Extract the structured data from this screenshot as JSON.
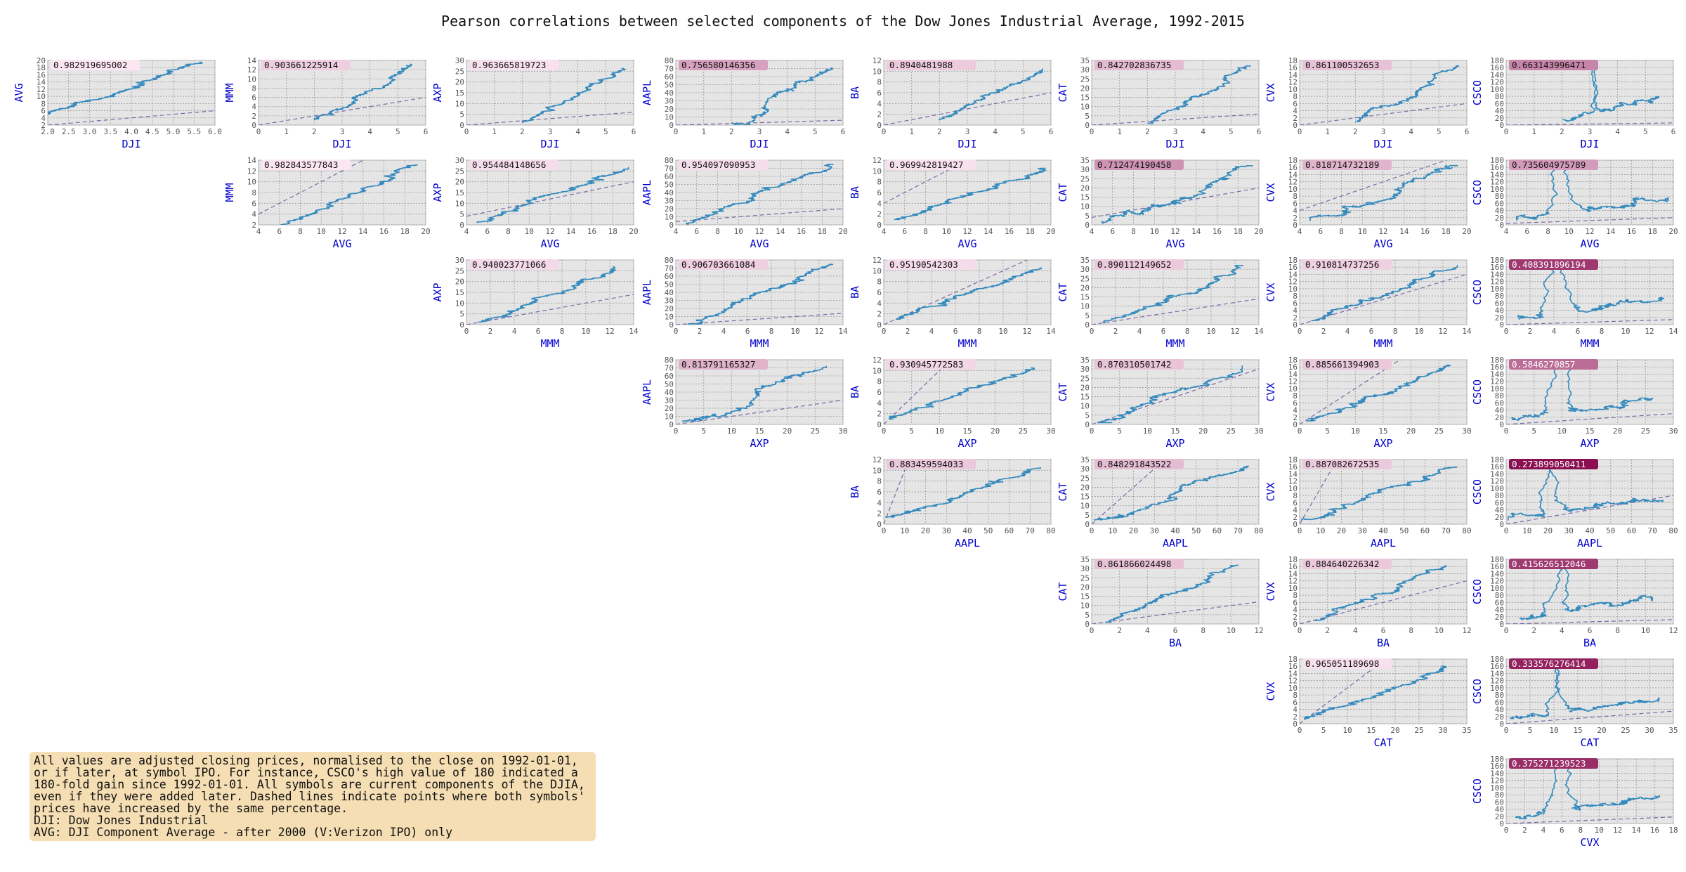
{
  "chart_data": {
    "type": "scatter",
    "title": "Pearson correlations between selected components of the Dow Jones Industrial Average, 1992-2015",
    "symbols": [
      "DJI",
      "AVG",
      "MMM",
      "AXP",
      "AAPL",
      "BA",
      "CAT",
      "CVX",
      "CSCO"
    ],
    "axes": {
      "DJI": {
        "lim": [
          2,
          6
        ],
        "ticks": [
          "2.0",
          "2.5",
          "3.0",
          "3.5",
          "4.0",
          "4.5",
          "5.0",
          "5.5",
          "6.0"
        ],
        "tick_values": [
          2,
          2.5,
          3,
          3.5,
          4,
          4.5,
          5,
          5.5,
          6
        ],
        "xlim_full": [
          0,
          6
        ],
        "xticks_full": [
          0,
          1,
          2,
          3,
          4,
          5,
          6
        ],
        "x_hi": 5.7
      },
      "AVG": {
        "lim": [
          4,
          20
        ],
        "ticks": [
          4,
          6,
          8,
          10,
          12,
          14,
          16,
          18,
          20
        ],
        "x_hi": 19.5
      },
      "MMM": {
        "lim": [
          0,
          14
        ],
        "ticks": [
          0,
          2,
          4,
          6,
          8,
          10,
          12,
          14
        ],
        "x_hi": 13.2
      },
      "AXP": {
        "lim": [
          0,
          30
        ],
        "ticks": [
          0,
          5,
          10,
          15,
          20,
          25,
          30
        ],
        "x_hi": 27
      },
      "AAPL": {
        "lim": [
          0,
          80
        ],
        "ticks": [
          0,
          10,
          20,
          30,
          40,
          50,
          60,
          70,
          80
        ],
        "x_hi": 75
      },
      "BA": {
        "lim": [
          0,
          12
        ],
        "ticks": [
          0,
          2,
          4,
          6,
          8,
          10,
          12
        ],
        "x_hi": 10.5
      },
      "CAT": {
        "lim": [
          0,
          35
        ],
        "ticks": [
          0,
          5,
          10,
          15,
          20,
          25,
          30,
          35
        ],
        "x_hi": 32
      },
      "CVX": {
        "lim": [
          0,
          18
        ],
        "ticks": [
          0,
          2,
          4,
          6,
          8,
          10,
          12,
          14,
          16,
          18
        ],
        "x_hi": 16.5
      },
      "CSCO": {
        "lim": [
          0,
          180
        ],
        "ticks": [
          0,
          20,
          40,
          60,
          80,
          100,
          120,
          140,
          160,
          180
        ],
        "x_hi": 170
      }
    },
    "special_ylim": {
      "AVG_vs_DJI": [
        2,
        20
      ],
      "AVG_vs_DJI_ticks": [
        2,
        4,
        6,
        8,
        10,
        12,
        14,
        16,
        18,
        20
      ],
      "MMM_vs_AVG": [
        2,
        14
      ],
      "MMM_vs_AVG_ticks": [
        2,
        4,
        6,
        8,
        10,
        12,
        14
      ]
    },
    "pairs": [
      {
        "x": "DJI",
        "y": "AVG",
        "r": "0.982919695002"
      },
      {
        "x": "DJI",
        "y": "MMM",
        "r": "0.903661225914"
      },
      {
        "x": "DJI",
        "y": "AXP",
        "r": "0.963665819723"
      },
      {
        "x": "DJI",
        "y": "AAPL",
        "r": "0.756580146356"
      },
      {
        "x": "DJI",
        "y": "BA",
        "r": "0.8940481988"
      },
      {
        "x": "DJI",
        "y": "CAT",
        "r": "0.842702836735"
      },
      {
        "x": "DJI",
        "y": "CVX",
        "r": "0.861100532653"
      },
      {
        "x": "DJI",
        "y": "CSCO",
        "r": "0.663143996471"
      },
      {
        "x": "AVG",
        "y": "MMM",
        "r": "0.982843577843"
      },
      {
        "x": "AVG",
        "y": "AXP",
        "r": "0.954484148656"
      },
      {
        "x": "AVG",
        "y": "AAPL",
        "r": "0.954097090953"
      },
      {
        "x": "AVG",
        "y": "BA",
        "r": "0.969942819427"
      },
      {
        "x": "AVG",
        "y": "CAT",
        "r": "0.712474190458"
      },
      {
        "x": "AVG",
        "y": "CVX",
        "r": "0.818714732189"
      },
      {
        "x": "AVG",
        "y": "CSCO",
        "r": "0.735604975789"
      },
      {
        "x": "MMM",
        "y": "AXP",
        "r": "0.940023771066"
      },
      {
        "x": "MMM",
        "y": "AAPL",
        "r": "0.906703661084"
      },
      {
        "x": "MMM",
        "y": "BA",
        "r": "0.95190542303"
      },
      {
        "x": "MMM",
        "y": "CAT",
        "r": "0.890112149652"
      },
      {
        "x": "MMM",
        "y": "CVX",
        "r": "0.910814737256"
      },
      {
        "x": "MMM",
        "y": "CSCO",
        "r": "0.408391896194"
      },
      {
        "x": "AXP",
        "y": "AAPL",
        "r": "0.813791165327"
      },
      {
        "x": "AXP",
        "y": "BA",
        "r": "0.930945772583"
      },
      {
        "x": "AXP",
        "y": "CAT",
        "r": "0.870310501742"
      },
      {
        "x": "AXP",
        "y": "CVX",
        "r": "0.885661394903"
      },
      {
        "x": "AXP",
        "y": "CSCO",
        "r": "0.5846270857"
      },
      {
        "x": "AAPL",
        "y": "BA",
        "r": "0.883459594033"
      },
      {
        "x": "AAPL",
        "y": "CAT",
        "r": "0.848291843522"
      },
      {
        "x": "AAPL",
        "y": "CVX",
        "r": "0.887082672535"
      },
      {
        "x": "AAPL",
        "y": "CSCO",
        "r": "0.273899050411"
      },
      {
        "x": "BA",
        "y": "CAT",
        "r": "0.861866024498"
      },
      {
        "x": "BA",
        "y": "CVX",
        "r": "0.884640226342"
      },
      {
        "x": "BA",
        "y": "CSCO",
        "r": "0.415626512046"
      },
      {
        "x": "CAT",
        "y": "CVX",
        "r": "0.965051189698"
      },
      {
        "x": "CAT",
        "y": "CSCO",
        "r": "0.333576276414"
      },
      {
        "x": "CVX",
        "y": "CSCO",
        "r": "0.375271239523"
      }
    ],
    "grid": true,
    "colors": {
      "line": "#348ABD",
      "dash": "#7A68A6",
      "axes_bg": "#E5E5E5",
      "label": "#0000cc",
      "corr_badge": "#cc4499"
    }
  },
  "note": {
    "lines": [
      "All values are adjusted closing prices, normalised to the close on 1992-01-01,",
      "or if later, at symbol IPO. For instance, CSCO's high value of 180 indicated a",
      "180-fold gain since 1992-01-01. All symbols are current components of the DJIA,",
      "even if they were added later. Dashed lines indicate points where both symbols'",
      "prices have increased by the same percentage.",
      "DJI: Dow Jones Industrial",
      "AVG: DJI Component Average - after 2000 (V:Verizon IPO) only"
    ]
  }
}
